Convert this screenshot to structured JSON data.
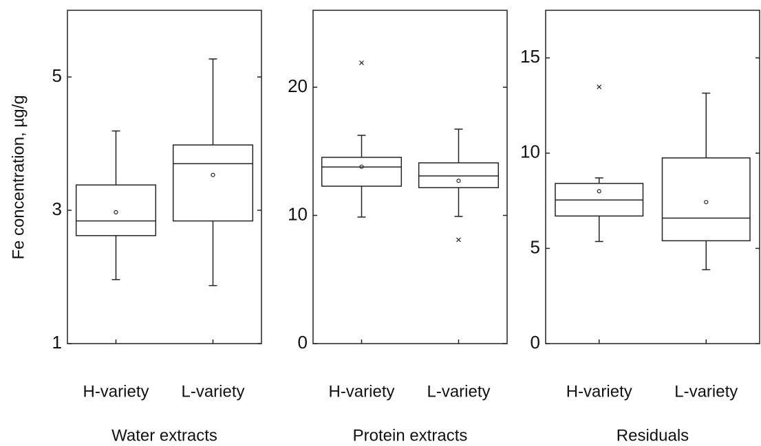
{
  "chart_data": [
    {
      "type": "box",
      "ylabel": "Fe concentration, µg/g",
      "xlabel": "Water extracts",
      "categories": [
        "H-variety",
        "L-variety"
      ],
      "boxes": [
        {
          "whislo": 1.96,
          "q1": 2.62,
          "med": 2.84,
          "q3": 3.38,
          "whishi": 4.19,
          "mean": 2.97,
          "fliers": []
        },
        {
          "whislo": 1.87,
          "q1": 2.84,
          "med": 3.7,
          "q3": 3.98,
          "whishi": 5.27,
          "mean": 3.53,
          "fliers": []
        }
      ],
      "ylim": [
        1,
        6
      ],
      "yticks": [
        1,
        3,
        5
      ]
    },
    {
      "type": "box",
      "xlabel": "Protein extracts",
      "categories": [
        "H-variety",
        "L-variety"
      ],
      "boxes": [
        {
          "whislo": 9.87,
          "q1": 12.28,
          "med": 13.78,
          "q3": 14.53,
          "whishi": 16.25,
          "mean": 13.8,
          "fliers": [
            21.9
          ]
        },
        {
          "whislo": 9.92,
          "q1": 12.17,
          "med": 13.08,
          "q3": 14.1,
          "whishi": 16.73,
          "mean": 12.7,
          "fliers": [
            8.1
          ]
        }
      ],
      "ylim": [
        0,
        26
      ],
      "yticks": [
        0,
        10,
        20
      ]
    },
    {
      "type": "box",
      "xlabel": "Residuals",
      "categories": [
        "H-variety",
        "L-variety"
      ],
      "boxes": [
        {
          "whislo": 5.36,
          "q1": 6.7,
          "med": 7.54,
          "q3": 8.41,
          "whishi": 8.7,
          "mean": 8.0,
          "fliers": [
            13.48
          ]
        },
        {
          "whislo": 3.88,
          "q1": 5.4,
          "med": 6.59,
          "q3": 9.75,
          "whishi": 13.15,
          "mean": 7.43,
          "fliers": []
        }
      ],
      "ylim": [
        0,
        17.5
      ],
      "yticks": [
        0,
        5,
        10,
        15
      ]
    }
  ]
}
